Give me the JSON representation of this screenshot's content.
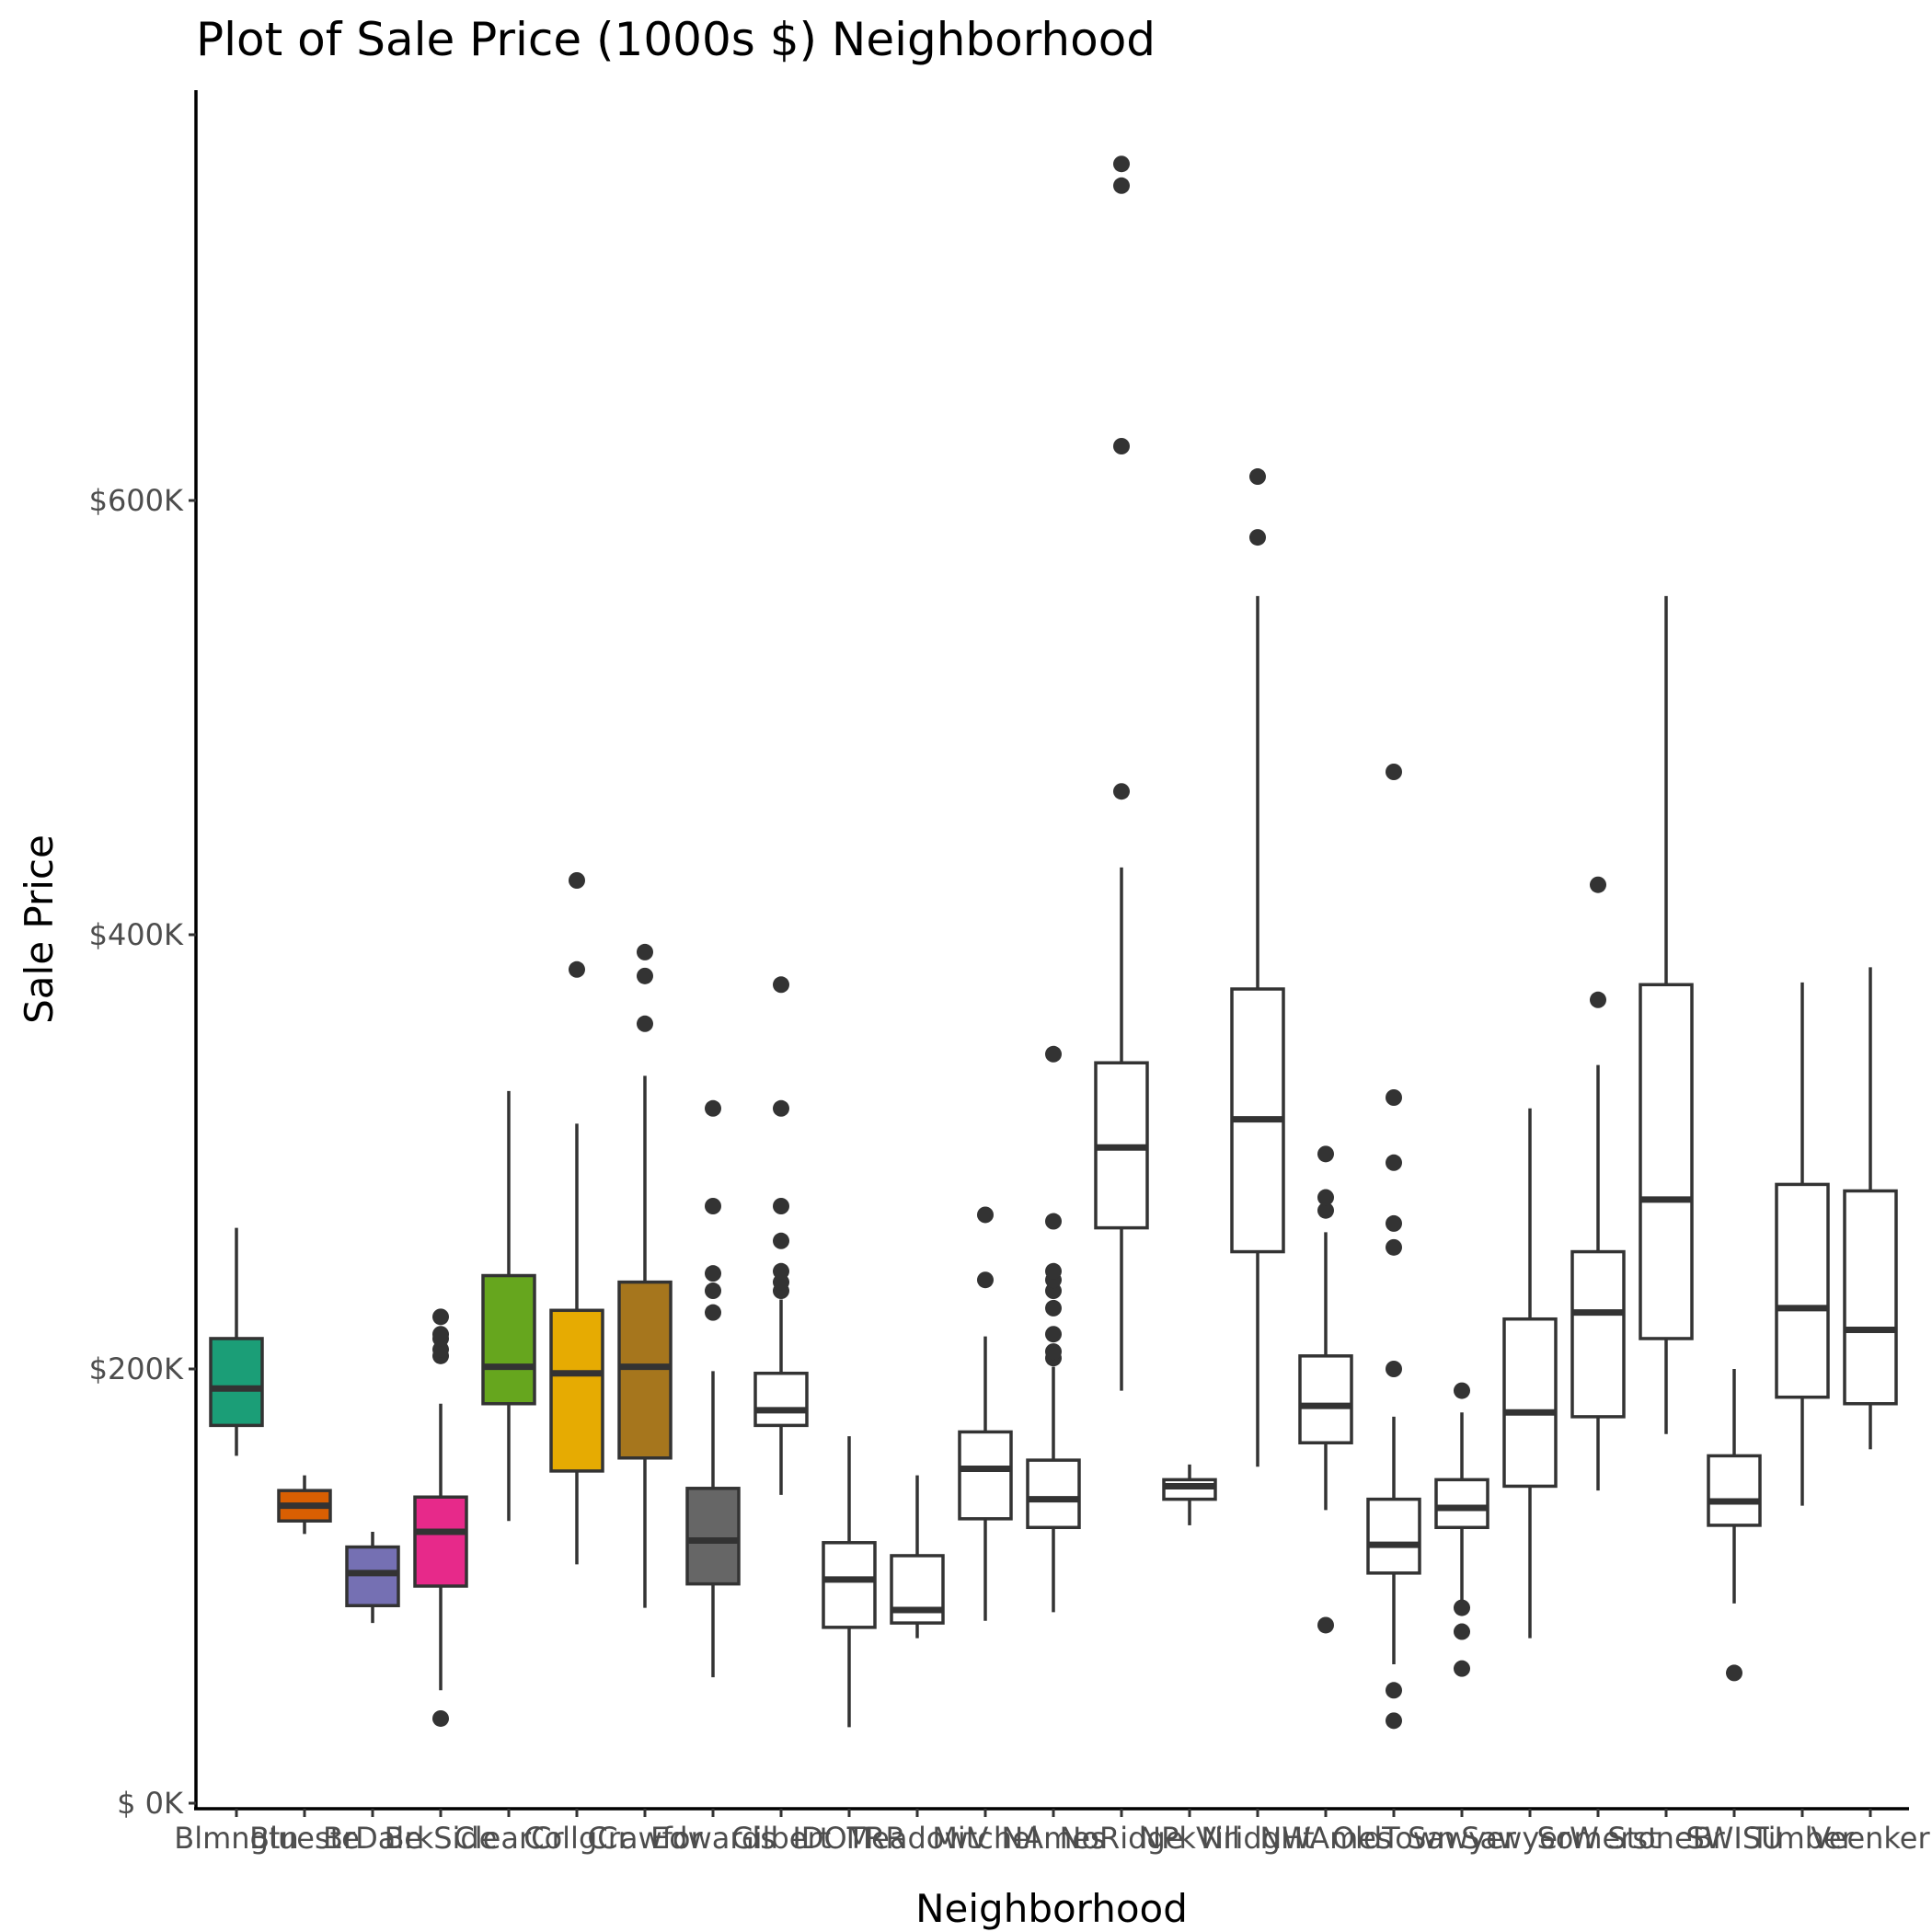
{
  "chart_data": {
    "type": "boxplot",
    "title": "Plot of Sale Price (1000s $) Neighborhood",
    "xlabel": "Neighborhood",
    "ylabel": "Sale Price",
    "ylim": [
      0,
      755
    ],
    "y_ticks": [
      {
        "value": 0,
        "label": "$  0K"
      },
      {
        "value": 200,
        "label": "$200K"
      },
      {
        "value": 400,
        "label": "$400K"
      },
      {
        "value": 600,
        "label": "$600K"
      }
    ],
    "grid": false,
    "legend": "none",
    "categories": [
      {
        "label": "Blmngtn",
        "color": "#1b9e77",
        "q1": 174,
        "median": 191,
        "q3": 214,
        "whisker_low": 160,
        "whisker_high": 265,
        "outliers": []
      },
      {
        "label": "Blueste",
        "color": "#d95f02",
        "q1": 130,
        "median": 137,
        "q3": 144,
        "whisker_low": 124,
        "whisker_high": 151,
        "outliers": []
      },
      {
        "label": "BrDale",
        "color": "#7570b3",
        "q1": 91,
        "median": 106,
        "q3": 118,
        "whisker_low": 83,
        "whisker_high": 125,
        "outliers": []
      },
      {
        "label": "BrkSide",
        "color": "#e7298a",
        "q1": 100,
        "median": 125,
        "q3": 141,
        "whisker_low": 52,
        "whisker_high": 184,
        "outliers": [
          39,
          206,
          209,
          214,
          216,
          224
        ]
      },
      {
        "label": "ClearCr",
        "color": "#66a61e",
        "q1": 184,
        "median": 201,
        "q3": 243,
        "whisker_low": 130,
        "whisker_high": 328,
        "outliers": []
      },
      {
        "label": "CollgCr",
        "color": "#e6ab02",
        "q1": 153,
        "median": 198,
        "q3": 227,
        "whisker_low": 110,
        "whisker_high": 313,
        "outliers": [
          384,
          425
        ]
      },
      {
        "label": "Crawfor",
        "color": "#a6761d",
        "q1": 159,
        "median": 201,
        "q3": 240,
        "whisker_low": 90,
        "whisker_high": 335,
        "outliers": [
          359,
          381,
          392
        ]
      },
      {
        "label": "Edwards",
        "color": "#666666",
        "q1": 101,
        "median": 121,
        "q3": 145,
        "whisker_low": 58,
        "whisker_high": 199,
        "outliers": [
          226,
          236,
          244,
          275,
          320
        ]
      },
      {
        "label": "Gilbert",
        "color": "#ffffff",
        "q1": 174,
        "median": 181,
        "q3": 198,
        "whisker_low": 142,
        "whisker_high": 232,
        "outliers": [
          236,
          240,
          245,
          259,
          275,
          320,
          377
        ]
      },
      {
        "label": "IDOTRR",
        "color": "#ffffff",
        "q1": 81,
        "median": 103,
        "q3": 120,
        "whisker_low": 35,
        "whisker_high": 169,
        "outliers": []
      },
      {
        "label": "MeadowV",
        "color": "#ffffff",
        "q1": 83,
        "median": 89,
        "q3": 114,
        "whisker_low": 76,
        "whisker_high": 151,
        "outliers": []
      },
      {
        "label": "Mitchel",
        "color": "#ffffff",
        "q1": 131,
        "median": 154,
        "q3": 171,
        "whisker_low": 84,
        "whisker_high": 215,
        "outliers": [
          241,
          271
        ]
      },
      {
        "label": "NAmes",
        "color": "#ffffff",
        "q1": 127,
        "median": 140,
        "q3": 158,
        "whisker_low": 88,
        "whisker_high": 201,
        "outliers": [
          205,
          208,
          216,
          228,
          236,
          241,
          245,
          268,
          345
        ]
      },
      {
        "label": "NoRidge",
        "color": "#ffffff",
        "q1": 265,
        "median": 302,
        "q3": 341,
        "whisker_low": 190,
        "whisker_high": 431,
        "outliers": [
          466,
          625,
          745,
          755
        ]
      },
      {
        "label": "NPkVill",
        "color": "#ffffff",
        "q1": 140,
        "median": 146,
        "q3": 149,
        "whisker_low": 128,
        "whisker_high": 156,
        "outliers": []
      },
      {
        "label": "NridgHt",
        "color": "#ffffff",
        "q1": 254,
        "median": 315,
        "q3": 375,
        "whisker_low": 155,
        "whisker_high": 556,
        "outliers": [
          583,
          611
        ]
      },
      {
        "label": "NWAmes",
        "color": "#ffffff",
        "q1": 166,
        "median": 183,
        "q3": 206,
        "whisker_low": 135,
        "whisker_high": 263,
        "outliers": [
          82,
          273,
          279,
          299
        ]
      },
      {
        "label": "OldTown",
        "color": "#ffffff",
        "q1": 106,
        "median": 119,
        "q3": 140,
        "whisker_low": 64,
        "whisker_high": 178,
        "outliers": [
          38,
          52,
          200,
          256,
          267,
          295,
          325,
          475
        ]
      },
      {
        "label": "Sawyer",
        "color": "#ffffff",
        "q1": 127,
        "median": 136,
        "q3": 149,
        "whisker_low": 90,
        "whisker_high": 180,
        "outliers": [
          62,
          79,
          90,
          190
        ]
      },
      {
        "label": "SawyerW",
        "color": "#ffffff",
        "q1": 146,
        "median": 180,
        "q3": 223,
        "whisker_low": 76,
        "whisker_high": 320,
        "outliers": []
      },
      {
        "label": "Somerst",
        "color": "#ffffff",
        "q1": 178,
        "median": 226,
        "q3": 254,
        "whisker_low": 144,
        "whisker_high": 340,
        "outliers": [
          370,
          423
        ]
      },
      {
        "label": "StoneBr",
        "color": "#ffffff",
        "q1": 214,
        "median": 278,
        "q3": 377,
        "whisker_low": 170,
        "whisker_high": 556,
        "outliers": []
      },
      {
        "label": "SWISU",
        "color": "#ffffff",
        "q1": 128,
        "median": 139,
        "q3": 160,
        "whisker_low": 92,
        "whisker_high": 200,
        "outliers": [
          60
        ]
      },
      {
        "label": "Timber",
        "color": "#ffffff",
        "q1": 187,
        "median": 228,
        "q3": 285,
        "whisker_low": 137,
        "whisker_high": 378,
        "outliers": []
      },
      {
        "label": "Veenker",
        "color": "#ffffff",
        "q1": 184,
        "median": 218,
        "q3": 282,
        "whisker_low": 163,
        "whisker_high": 385,
        "outliers": []
      }
    ]
  }
}
